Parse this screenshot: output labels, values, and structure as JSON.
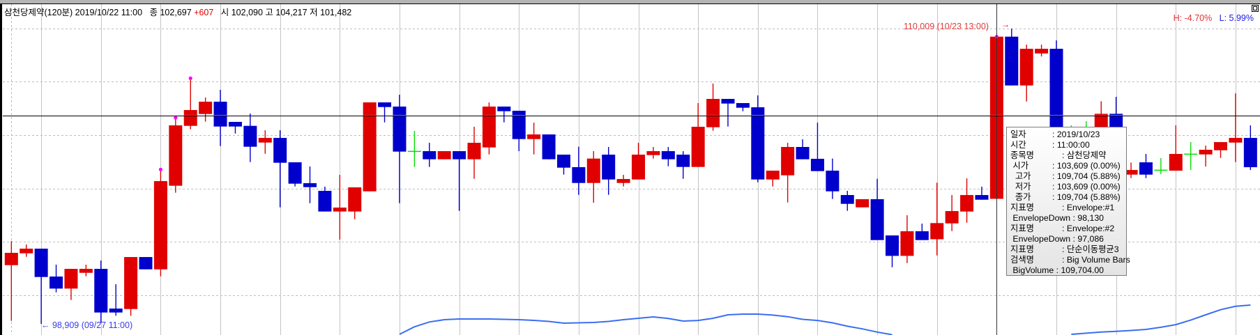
{
  "header": {
    "symbol": "삼천당제약(120분)",
    "datetime": "2019/10/22 11:00",
    "close_label": "종",
    "close": "102,697",
    "change": "+607",
    "open_label": "시",
    "open": "102,090",
    "high_label": "고",
    "high": "104,217",
    "low_label": "저",
    "low": "101,482"
  },
  "range_stats": {
    "high_pct": "H: -4.70%",
    "low_pct": "L: 5.99%"
  },
  "annotations": {
    "max_label": "110,009 (10/23 13:00)",
    "min_label": "98,909 (09/27 11:00)",
    "max_arrow": "→",
    "min_arrow": "←"
  },
  "colors": {
    "up": "#e00000",
    "down": "#0000cc",
    "doji": "#00e000",
    "envelope": "#3a6df0",
    "crosshair": "#000000",
    "marker": "#ff00ff"
  },
  "crosshair_price": 106736,
  "tooltip": {
    "rows": [
      {
        "k": "일자",
        "v": ": 2019/10/23"
      },
      {
        "k": "시간",
        "v": ": 11:00:00"
      },
      {
        "k": "종목명",
        "v": ": 삼천당제약"
      },
      {
        "k": " 시가",
        "v": ": 103,609 (0.00%)"
      },
      {
        "k": "  고가",
        "v": ": 109,704 (5.88%)"
      },
      {
        "k": "  저가",
        "v": ": 103,609 (0.00%)"
      },
      {
        "k": "  종가",
        "v": ": 109,704 (5.88%)"
      },
      {
        "k": "지표명",
        "v": ": Envelope:#1"
      },
      {
        "k": " EnvelopeDown",
        "v": " : 98,130"
      },
      {
        "k": "지표명",
        "v": ": Envelope:#2"
      },
      {
        "k": " EnvelopeDown",
        "v": " : 97,086"
      },
      {
        "k": "지표명",
        "v": ": 단순이동평균3"
      },
      {
        "k": "검색명",
        "v": ": Big Volume Bars"
      },
      {
        "k": " BigVolume",
        "v": " : 109,704.00"
      }
    ]
  },
  "chart_data": {
    "type": "candlestick",
    "ylim": [
      98440,
      110600
    ],
    "price_gridlines": [
      110009,
      108012,
      105996,
      103980,
      101991,
      99975
    ],
    "ohlc": [
      [
        101116,
        102024,
        99022,
        101579
      ],
      [
        101561,
        101893,
        101430,
        101736
      ],
      [
        101736,
        101736,
        98909,
        100671
      ],
      [
        100688,
        101134,
        100095,
        100235
      ],
      [
        100235,
        100976,
        99807,
        100976
      ],
      [
        100828,
        101134,
        100697,
        100976
      ],
      [
        100976,
        101291,
        98950,
        99336
      ],
      [
        99484,
        100400,
        99214,
        99336
      ],
      [
        99467,
        101421,
        99214,
        101421
      ],
      [
        101421,
        101421,
        100959,
        100959
      ],
      [
        100959,
        104712,
        100697,
        104275
      ],
      [
        104101,
        106658,
        103839,
        106370
      ],
      [
        106352,
        108141,
        106221,
        106946
      ],
      [
        106797,
        107417,
        106509,
        107260
      ],
      [
        107260,
        107705,
        105593,
        106326
      ],
      [
        106501,
        106501,
        106064,
        106326
      ],
      [
        106352,
        106815,
        104991,
        105567
      ],
      [
        105724,
        106186,
        105305,
        105898
      ],
      [
        105898,
        106186,
        103289,
        104965
      ],
      [
        104982,
        104982,
        104074,
        104179
      ],
      [
        104197,
        104825,
        103446,
        104048
      ],
      [
        103909,
        104066,
        103132,
        103132
      ],
      [
        103132,
        104511,
        102076,
        103280
      ],
      [
        103132,
        104040,
        102844,
        104040
      ],
      [
        103891,
        107234,
        103891,
        107234
      ],
      [
        107234,
        107234,
        106483,
        107059
      ],
      [
        107077,
        107522,
        103446,
        105384
      ],
      [
        105392,
        106160,
        104808,
        105392
      ],
      [
        105401,
        105715,
        104808,
        105096
      ],
      [
        105096,
        105401,
        105096,
        105401
      ],
      [
        105401,
        105401,
        103158,
        105096
      ],
      [
        105096,
        106317,
        104362,
        105715
      ],
      [
        105541,
        107234,
        105279,
        107077
      ],
      [
        107077,
        107077,
        106483,
        106902
      ],
      [
        106920,
        106920,
        105401,
        105855
      ],
      [
        105855,
        106474,
        105279,
        106029
      ],
      [
        106029,
        106029,
        105096,
        105096
      ],
      [
        105270,
        105270,
        104520,
        104781
      ],
      [
        104799,
        105567,
        103760,
        104205
      ],
      [
        104205,
        105401,
        103464,
        105122
      ],
      [
        105270,
        105558,
        103760,
        104336
      ],
      [
        104205,
        104511,
        104074,
        104354
      ],
      [
        104336,
        105715,
        104336,
        105270
      ],
      [
        105253,
        105558,
        105122,
        105401
      ],
      [
        105401,
        105558,
        104834,
        105096
      ],
      [
        105270,
        105401,
        104362,
        104808
      ],
      [
        104808,
        107208,
        104808,
        106317
      ],
      [
        106300,
        107941,
        106169,
        107365
      ],
      [
        107365,
        107365,
        106326,
        107190
      ],
      [
        107208,
        107208,
        106902,
        107033
      ],
      [
        107050,
        107496,
        104232,
        104336
      ],
      [
        104336,
        104668,
        104074,
        104668
      ],
      [
        104493,
        105715,
        103472,
        105558
      ],
      [
        105558,
        105846,
        105096,
        105096
      ],
      [
        105113,
        106474,
        104651,
        104651
      ],
      [
        104668,
        105122,
        103603,
        103891
      ],
      [
        103752,
        103909,
        103158,
        103420
      ],
      [
        103289,
        103595,
        103289,
        103595
      ],
      [
        103595,
        104362,
        102059,
        102059
      ],
      [
        102233,
        102233,
        101037,
        101465
      ],
      [
        101465,
        102992,
        101195,
        102390
      ],
      [
        102390,
        102678,
        102059,
        102059
      ],
      [
        102090,
        104217,
        101482,
        102697
      ],
      [
        102686,
        103751,
        102398,
        103149
      ],
      [
        103131,
        104379,
        102712,
        103751
      ],
      [
        103751,
        104065,
        103576,
        103576
      ],
      [
        103609,
        109704,
        103609,
        109704
      ],
      [
        109704,
        110009,
        107870,
        107870
      ],
      [
        107870,
        109406,
        107268,
        109249
      ],
      [
        109074,
        109406,
        108961,
        109249
      ],
      [
        109249,
        109563,
        104300,
        104449
      ],
      [
        104449,
        106369,
        104200,
        104449
      ],
      [
        104449,
        106526,
        104100,
        104449
      ],
      [
        105800,
        107277,
        105500,
        106805
      ],
      [
        106805,
        107443,
        105300,
        105500
      ],
      [
        104519,
        104973,
        104388,
        104693
      ],
      [
        104981,
        105296,
        104388,
        104519
      ],
      [
        104685,
        105139,
        104536,
        104685
      ],
      [
        104667,
        106369,
        104667,
        105296
      ],
      [
        105287,
        105741,
        104693,
        105287
      ],
      [
        105278,
        105610,
        104824,
        105453
      ],
      [
        105435,
        105741,
        105147,
        105741
      ],
      [
        105723,
        107573,
        104990,
        105898
      ],
      [
        105898,
        106369,
        104693,
        104798
      ]
    ],
    "high_markers": [
      10,
      11,
      12,
      66
    ],
    "selected_index": 66,
    "envelope_segments": [
      {
        "start": 26,
        "values": [
          98516,
          98800,
          98980,
          99066,
          99092,
          99092,
          99092,
          99080,
          99066,
          99040,
          99000,
          98935,
          98950,
          98961,
          99000,
          99066,
          99118,
          99170,
          99110,
          99013,
          99039,
          99120,
          99250,
          99275,
          99275,
          99240,
          99180,
          99080,
          99039,
          98950,
          98820,
          98720,
          98600,
          98500
        ]
      },
      {
        "start": 71,
        "values": [
          98516,
          98560,
          98600,
          98630,
          98660,
          98700,
          98780,
          98880,
          99050,
          99250,
          99440,
          99570,
          99616
        ]
      }
    ]
  }
}
